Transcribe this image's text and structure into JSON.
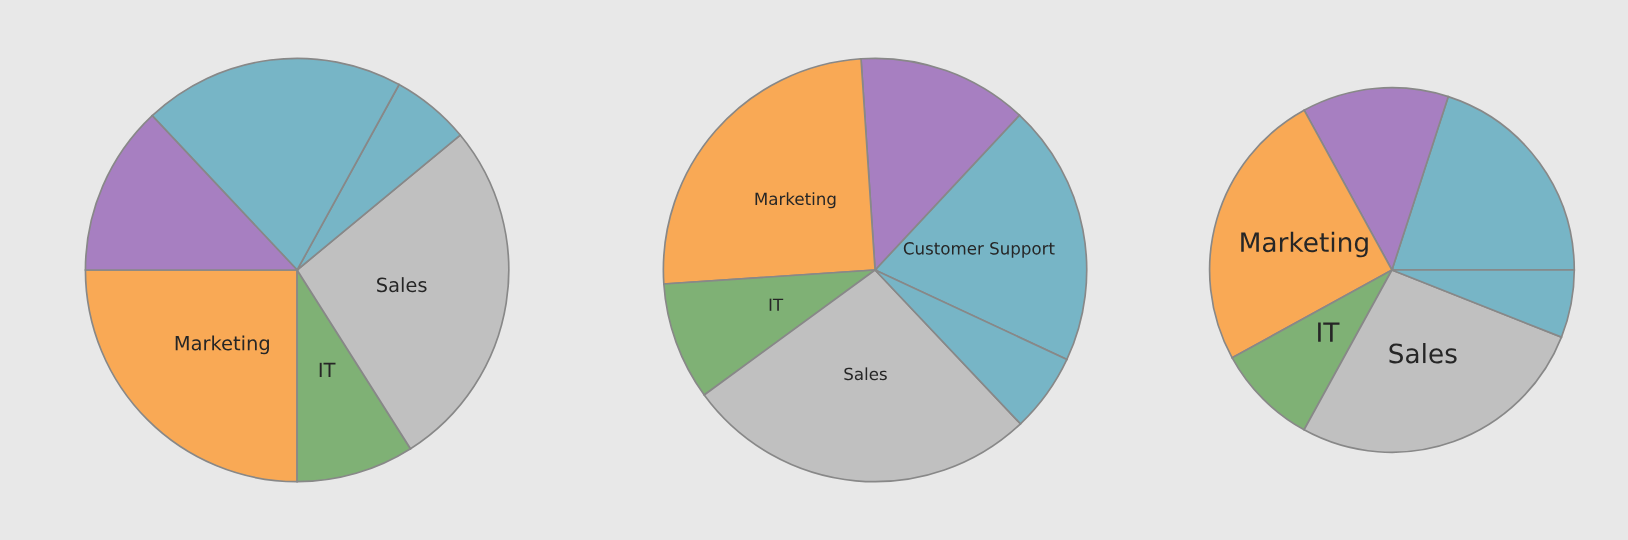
{
  "chart_data": [
    {
      "type": "pie",
      "categories": [
        "Marketing",
        "IT",
        "Sales",
        null,
        null,
        null
      ],
      "values": [
        25,
        9,
        27,
        6,
        20,
        13
      ],
      "colors": [
        "#f9a955",
        "#7fb175",
        "#c0c0c0",
        "#77b5c6",
        "#77b5c6",
        "#a77fc1"
      ]
    },
    {
      "type": "pie",
      "categories": [
        "Customer Support",
        null,
        "Marketing",
        "IT",
        "Sales",
        null
      ],
      "values": [
        20,
        13,
        25,
        9,
        27,
        6
      ],
      "colors": [
        "#77b5c6",
        "#a77fc1",
        "#f9a955",
        "#7fb175",
        "#c0c0c0",
        "#77b5c6"
      ]
    },
    {
      "type": "pie",
      "categories": [
        null,
        null,
        "Marketing",
        "IT",
        "Sales",
        null
      ],
      "values": [
        20,
        13,
        25,
        9,
        27,
        6
      ],
      "colors": [
        "#77b5c6",
        "#a77fc1",
        "#f9a955",
        "#7fb175",
        "#c0c0c0",
        "#77b5c6"
      ]
    }
  ]
}
